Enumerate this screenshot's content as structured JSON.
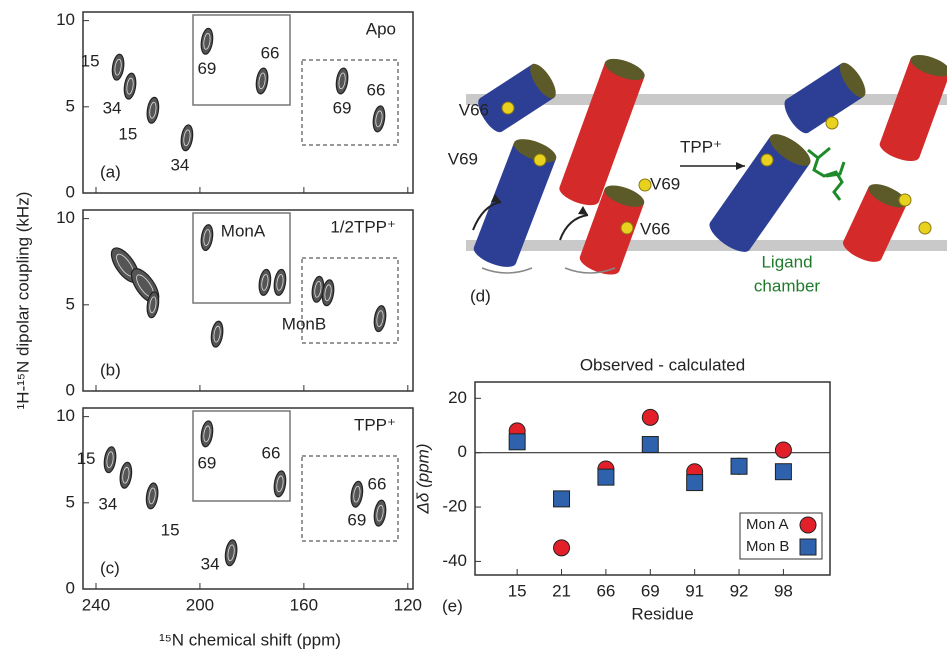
{
  "chart_data": [
    {
      "type": "contour",
      "panel_label": "(a)",
      "title": "Apo",
      "xlim": [
        245,
        118
      ],
      "xticks": [
        240,
        200,
        160,
        120
      ],
      "ylim": [
        0,
        10.5
      ],
      "yticks": [
        0,
        5,
        10
      ],
      "x": [
        231.5,
        226.9,
        218.1,
        205,
        197.3,
        176.1,
        145.3,
        131.1
      ],
      "y": [
        7.3,
        6.2,
        4.8,
        3.2,
        8.8,
        6.5,
        6.5,
        4.3
      ],
      "point_labels": [
        "15",
        "34",
        "15",
        "34",
        "69",
        "66",
        "69",
        "66"
      ]
    },
    {
      "type": "contour",
      "panel_label": "(b)",
      "title": "1/2TPP⁺",
      "ylabel": "¹H-¹⁵N dipolar coupling (kHz)",
      "xlim": [
        245,
        118
      ],
      "xticks": [
        240,
        200,
        160,
        120
      ],
      "ylim": [
        0,
        10.5
      ],
      "yticks": [
        0,
        5,
        10
      ],
      "x": [
        228.8,
        221.1,
        218.1,
        197.3,
        193.4,
        175,
        169.2,
        154.6,
        150.7,
        130.7
      ],
      "y": [
        7.3,
        6.1,
        5.0,
        8.9,
        3.3,
        6.3,
        6.3,
        5.9,
        5.7,
        4.2
      ],
      "annotations": [
        "MonA",
        "MonB"
      ]
    },
    {
      "type": "contour",
      "panel_label": "(c)",
      "title": "TPP⁺",
      "xlabel": "¹⁵N chemical shift (ppm)",
      "xlim": [
        245,
        118
      ],
      "xticks": [
        240,
        200,
        160,
        120
      ],
      "ylim": [
        0,
        10.5
      ],
      "yticks": [
        0,
        5,
        10
      ],
      "x": [
        234.6,
        228.5,
        218.4,
        188,
        197.3,
        169.2,
        139.6,
        130.7
      ],
      "y": [
        7.5,
        6.6,
        5.4,
        2.1,
        9.0,
        6.1,
        5.5,
        4.4
      ],
      "point_labels": [
        "15",
        "34",
        "15",
        "34",
        "69",
        "66",
        "69",
        "66"
      ]
    },
    {
      "type": "scatter",
      "panel_label": "(e)",
      "title": "Observed - calculated",
      "xlabel": "Residue",
      "ylabel": "Δδ (ppm)",
      "categories": [
        "15",
        "21",
        "66",
        "69",
        "91",
        "92",
        "98"
      ],
      "ylim": [
        -45,
        26
      ],
      "yticks": [
        -40,
        -20,
        0,
        20
      ],
      "series": [
        {
          "name": "Mon A",
          "color": "#e3202a",
          "marker": "circle",
          "values": [
            8,
            -35,
            -6,
            13,
            -7,
            -5,
            1
          ]
        },
        {
          "name": "Mon B",
          "color": "#2f62ad",
          "marker": "square",
          "values": [
            4,
            -17,
            -9,
            3,
            -11,
            -5,
            -7
          ]
        }
      ],
      "legend": "lower right"
    }
  ],
  "diagram": {
    "panel_label": "(d)",
    "residue_labels": [
      "V66",
      "V69",
      "V69",
      "V66"
    ],
    "arrow_label": "TPP⁺",
    "chamber_label": [
      "Ligand",
      "chamber"
    ]
  }
}
